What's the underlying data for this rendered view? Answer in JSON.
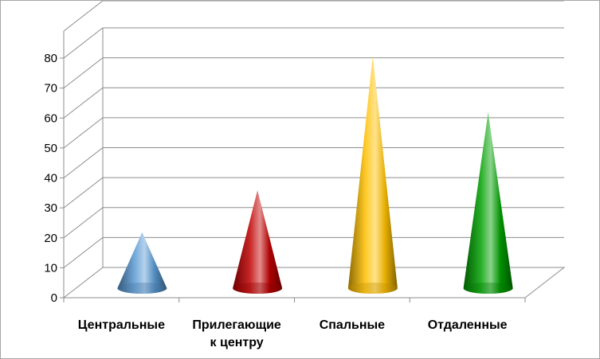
{
  "chart_data": {
    "type": "bar",
    "shape": "cone",
    "style": "3d",
    "categories": [
      [
        "Центральные"
      ],
      [
        "Прилегающие",
        "к центру"
      ],
      [
        "Спальные"
      ],
      [
        "Отдаленные"
      ]
    ],
    "series": [
      {
        "values": [
          20,
          34,
          79,
          60
        ]
      }
    ],
    "point_colors": [
      "#5b9bd5",
      "#c00000",
      "#ffc000",
      "#00a000"
    ],
    "ylim": [
      0,
      80
    ],
    "yticks": [
      0,
      10,
      20,
      30,
      40,
      50,
      60,
      70,
      80
    ],
    "grid": true,
    "legend": "none",
    "title": "",
    "xlabel": "",
    "ylabel": ""
  }
}
